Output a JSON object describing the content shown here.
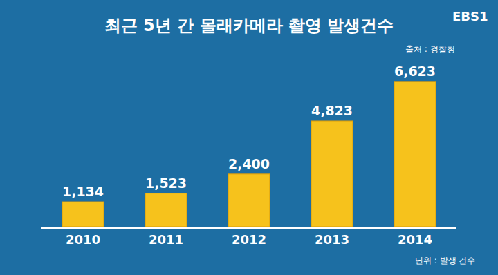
{
  "chart_data": {
    "type": "bar",
    "title": "최근 5년 간 몰래카메라 촬영 발생건수",
    "source": "출처 : 경찰청",
    "unit": "단위 : 발생 건수",
    "channel": "EBS1",
    "categories": [
      "2010",
      "2011",
      "2012",
      "2013",
      "2014"
    ],
    "values": [
      1134,
      1523,
      2400,
      4823,
      6623
    ],
    "value_labels": [
      "1,134",
      "1,523",
      "2,400",
      "4,823",
      "6,623"
    ],
    "color": "#f6c21c",
    "ylim": [
      0,
      7500
    ],
    "data_labels": true,
    "tick_labels": "x",
    "grid": false
  }
}
